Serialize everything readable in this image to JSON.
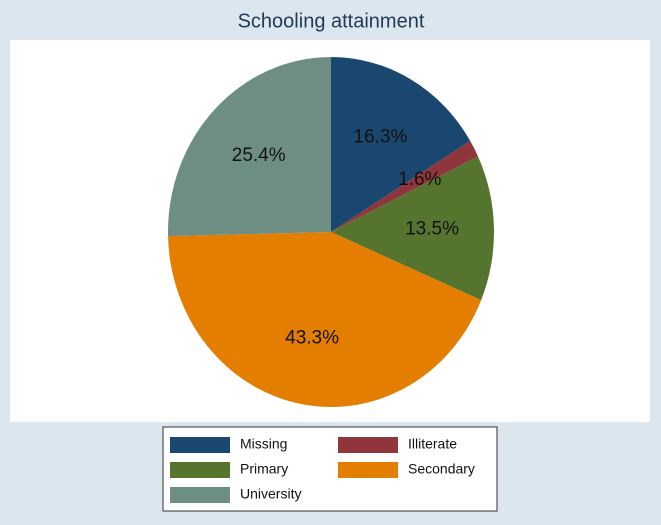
{
  "chart_data": {
    "type": "pie",
    "title": "Schooling attainment",
    "categories": [
      "Missing",
      "Illiterate",
      "Primary",
      "Secondary",
      "University"
    ],
    "values": [
      16.3,
      1.6,
      13.5,
      43.3,
      25.4
    ],
    "value_labels": [
      "16.3%",
      "1.6%",
      "13.5%",
      "43.3%",
      "25.4%"
    ],
    "colors": [
      "#1a476f",
      "#90353b",
      "#55752f",
      "#e37e00",
      "#6e8e84"
    ]
  }
}
